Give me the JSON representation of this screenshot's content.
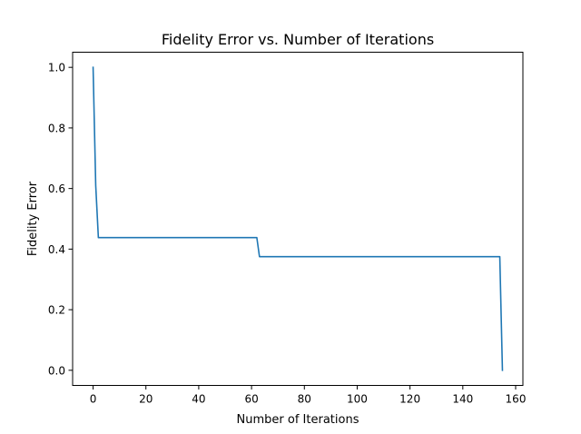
{
  "chart_data": {
    "type": "line",
    "title": "Fidelity Error vs. Number of Iterations",
    "xlabel": "Number of Iterations",
    "ylabel": "Fidelity Error",
    "xlim": [
      -7.75,
      162.75
    ],
    "ylim": [
      -0.05,
      1.05
    ],
    "xticks": [
      0,
      20,
      40,
      60,
      80,
      100,
      120,
      140,
      160
    ],
    "xtick_labels": [
      "0",
      "20",
      "40",
      "60",
      "80",
      "100",
      "120",
      "140",
      "160"
    ],
    "yticks": [
      0.0,
      0.2,
      0.4,
      0.6,
      0.8,
      1.0
    ],
    "ytick_labels": [
      "0.0",
      "0.2",
      "0.4",
      "0.6",
      "0.8",
      "1.0"
    ],
    "grid": false,
    "series": [
      {
        "color": "#1f77b4",
        "x": [
          0,
          1,
          2,
          3,
          62,
          63,
          64,
          154,
          155
        ],
        "y": [
          1.0,
          0.61,
          0.438,
          0.438,
          0.438,
          0.375,
          0.375,
          0.375,
          0.0
        ]
      }
    ]
  }
}
